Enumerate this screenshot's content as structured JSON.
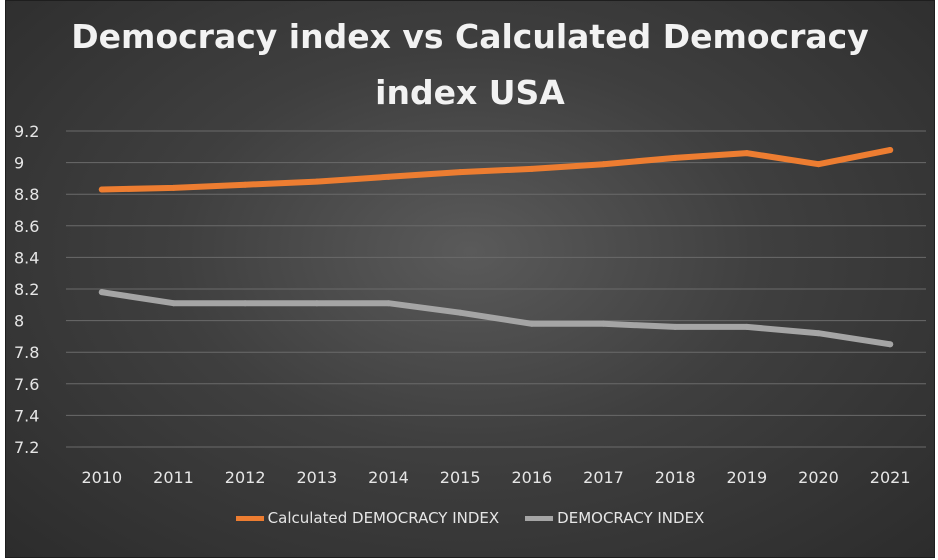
{
  "chart_data": {
    "type": "line",
    "title": "Democracy index vs Calculated Democracy index USA",
    "title_lines": [
      "Democracy index vs Calculated Democracy",
      "index USA"
    ],
    "categories": [
      "2010",
      "2011",
      "2012",
      "2013",
      "2014",
      "2015",
      "2016",
      "2017",
      "2018",
      "2019",
      "2020",
      "2021"
    ],
    "series": [
      {
        "name": "Calculated DEMOCRACY INDEX",
        "color": "#ed7d31",
        "values": [
          8.83,
          8.84,
          8.86,
          8.88,
          8.91,
          8.94,
          8.96,
          8.99,
          9.03,
          9.06,
          8.99,
          9.08
        ]
      },
      {
        "name": "DEMOCRACY INDEX",
        "color": "#a5a5a5",
        "values": [
          8.18,
          8.11,
          8.11,
          8.11,
          8.11,
          8.05,
          7.98,
          7.98,
          7.96,
          7.96,
          7.92,
          7.85
        ]
      }
    ],
    "ylim": [
      7.2,
      9.2
    ],
    "yticks": [
      "9.2",
      "9",
      "8.8",
      "8.6",
      "8.4",
      "8.2",
      "8",
      "7.8",
      "7.6",
      "7.4",
      "7.2"
    ],
    "ytick_values": [
      9.2,
      9.0,
      8.8,
      8.6,
      8.4,
      8.2,
      8.0,
      7.8,
      7.6,
      7.4,
      7.2
    ],
    "grid": true,
    "legend_position": "bottom",
    "xlabel": "",
    "ylabel": ""
  }
}
